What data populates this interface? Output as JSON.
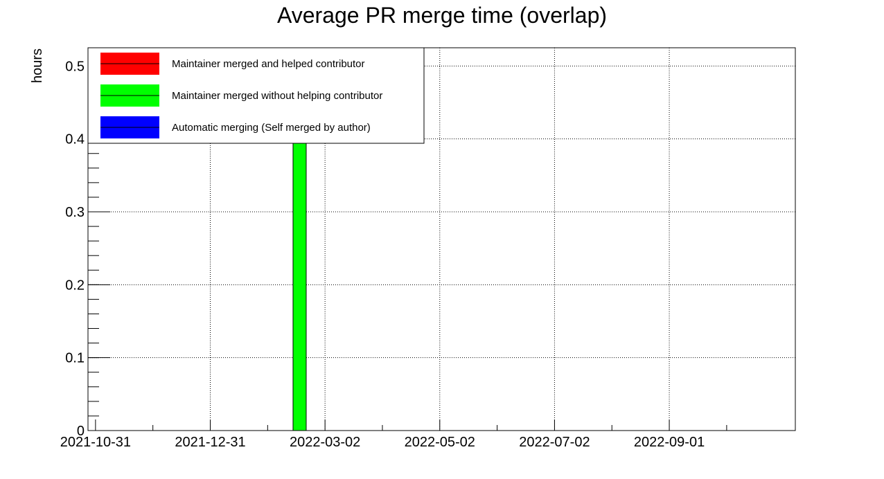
{
  "chart_data": {
    "type": "bar",
    "title": "Average PR merge time (overlap)",
    "xlabel": "",
    "ylabel": "hours",
    "ylim": [
      0,
      0.525
    ],
    "yticks": [
      "0",
      "0.1",
      "0.2",
      "0.3",
      "0.4",
      "0.5"
    ],
    "x_is_date": true,
    "xlim": [
      "2021-10-27",
      "2022-11-07"
    ],
    "xticks": [
      "2021-10-31",
      "2021-12-31",
      "2022-03-02",
      "2022-05-02",
      "2022-07-02",
      "2022-09-01"
    ],
    "grid": true,
    "legend_position": "top-left",
    "series": [
      {
        "name": "Maintainer merged and helped contributor",
        "color": "#ff0000",
        "points": []
      },
      {
        "name": "Maintainer merged without helping contributor",
        "color": "#00ff00",
        "points": [
          {
            "x_start": "2022-02-13",
            "x_end": "2022-02-20",
            "value": 0.5
          }
        ]
      },
      {
        "name": "Automatic merging (Self merged by author)",
        "color": "#0000ff",
        "points": []
      }
    ]
  }
}
